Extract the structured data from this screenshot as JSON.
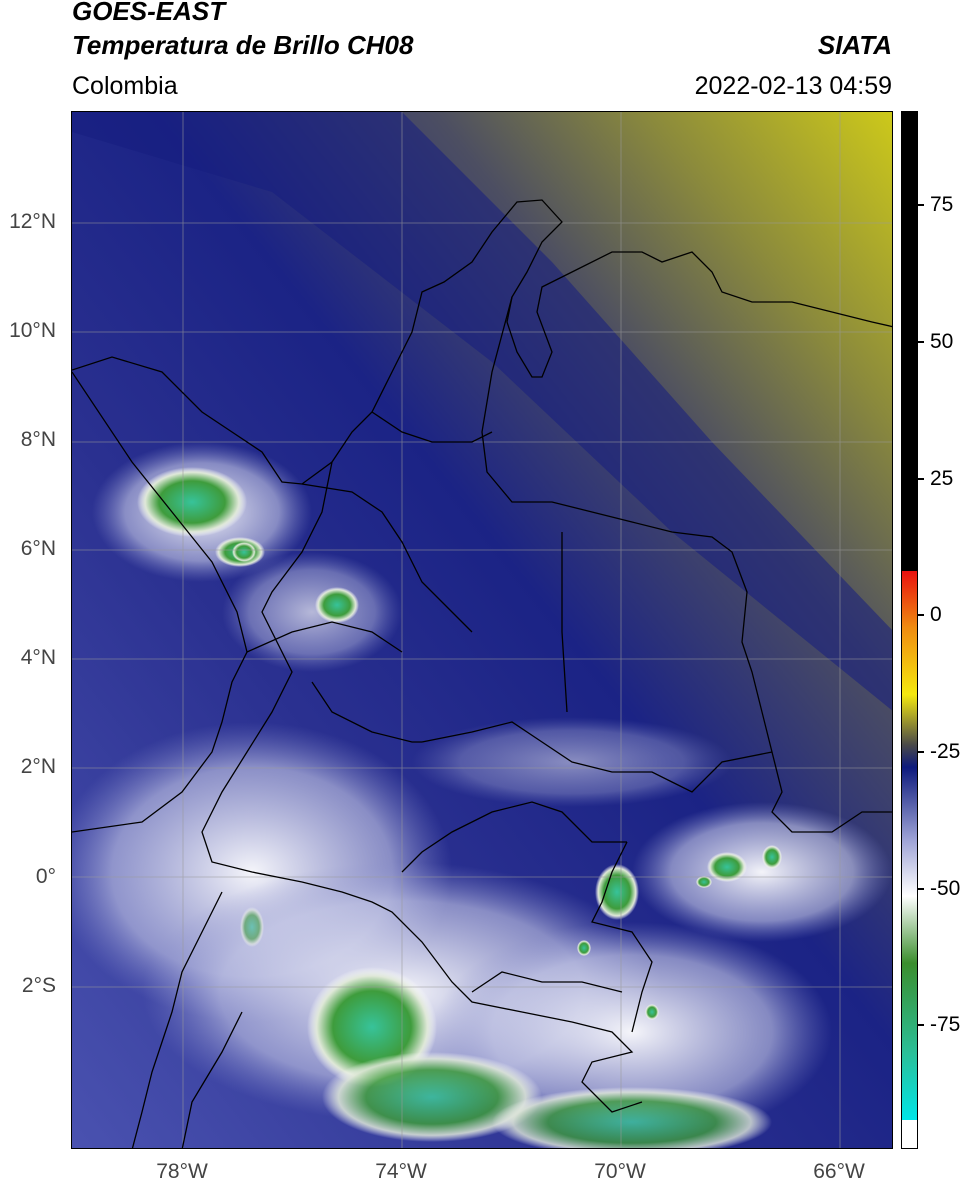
{
  "header": {
    "title_line1": "GOES-EAST",
    "title_line2": "Temperatura de Brillo CH08",
    "subtitle": "Colombia",
    "credit": "SIATA",
    "datetime": "2022-02-13 04:59"
  },
  "axes": {
    "lat_ticks": [
      "12°N",
      "10°N",
      "8°N",
      "6°N",
      "4°N",
      "2°N",
      "0°",
      "2°S"
    ],
    "lon_ticks": [
      "78°W",
      "74°W",
      "70°W",
      "66°W"
    ],
    "grid": true
  },
  "colorbar": {
    "tick_labels": [
      "75",
      "50",
      "25",
      "0",
      "-25",
      "-50",
      "-75"
    ],
    "tick_values": [
      75,
      50,
      25,
      0,
      -25,
      -50,
      -75
    ],
    "range": [
      -95,
      90
    ],
    "colors": {
      "warm_top": "#000000",
      "red": "#e8110f",
      "orange": "#f08b10",
      "yellow": "#f5e90f",
      "gray": "#4a4a48",
      "navy": "#0d1a7d",
      "lavender": "#9ea3d6",
      "white": "#ffffff",
      "green": "#3b8e2d",
      "teal": "#2bbf98",
      "cyan": "#00e5e8"
    }
  },
  "map": {
    "extent": {
      "lon_min": -80,
      "lon_max": -65,
      "lat_min": -5,
      "lat_max": 14
    },
    "colors": {
      "sea_navy": "#1a2380",
      "land_blue": "#3a3f9a",
      "olive": "#8a8c3a",
      "yellow_dry": "#c9c51c",
      "cloud_white": "#e8e9f5",
      "cloud_green": "#3d9a3a",
      "cloud_teal": "#37c29a"
    }
  }
}
